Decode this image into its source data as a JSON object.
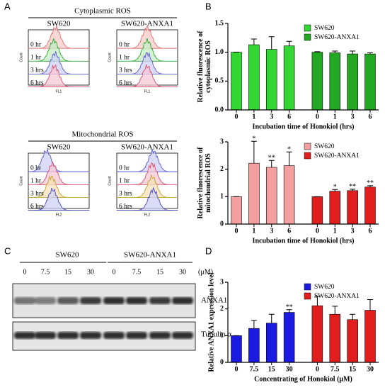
{
  "panel_labels": [
    "A",
    "B",
    "C",
    "D"
  ],
  "flow": {
    "cytoplasmic_title": "Cytoplasmic ROS",
    "mitochondrial_title": "Mitochondrial ROS",
    "cell_lines": [
      "SW620",
      "SW620-ANXA1"
    ],
    "times": [
      "0 hr",
      "1 hr",
      "3 hrs",
      "6 hrs"
    ],
    "y_label": "Count",
    "x_labels": [
      "FL1",
      "FL2"
    ]
  },
  "blot": {
    "cell_lines": [
      "SW620",
      "SW620-ANXA1"
    ],
    "concentrations": [
      "0",
      "7.5",
      "15",
      "30",
      "0",
      "7.5",
      "15",
      "30"
    ],
    "unit": "(μM)",
    "bands": [
      "ANXA1",
      "Tubulin α"
    ]
  },
  "chart_data": [
    {
      "type": "bar",
      "ylabel": [
        "Relative fluorescence of",
        "cytoplasmic ROS"
      ],
      "xlabel": "Incubation time of Honokiol (hrs)",
      "categories": [
        "0",
        "1",
        "3",
        "6",
        "0",
        "1",
        "3",
        "6"
      ],
      "series": [
        {
          "name": "SW620",
          "color": "#33d633",
          "values": [
            1.0,
            1.13,
            1.05,
            1.11,
            null,
            null,
            null,
            null
          ],
          "errors": [
            0.0,
            0.1,
            0.22,
            0.08,
            null,
            null,
            null,
            null
          ]
        },
        {
          "name": "SW620-ANXA1",
          "color": "#22a822",
          "values": [
            null,
            null,
            null,
            null,
            1.0,
            0.99,
            0.97,
            0.97
          ],
          "errors": [
            null,
            null,
            null,
            null,
            0.01,
            0.03,
            0.05,
            0.02
          ]
        }
      ],
      "ylim": [
        0,
        1.5
      ],
      "yticks": [
        {
          "value": 0,
          "label": "0.0"
        },
        {
          "value": 0.5,
          "label": "0.5"
        },
        {
          "value": 1,
          "label": "1.0"
        },
        {
          "value": 1.5,
          "label": "1.5"
        }
      ],
      "legend": "upper right",
      "annotations": []
    },
    {
      "type": "bar",
      "ylabel": [
        "Relative fluorescence of",
        "mitochondrial ROS"
      ],
      "xlabel": "Incubation time of Honokiol (hrs)",
      "categories": [
        "0",
        "1",
        "3",
        "6",
        "0",
        "1",
        "3",
        "6"
      ],
      "series": [
        {
          "name": "SW620",
          "color": "#f4a0a0",
          "values": [
            1.0,
            2.22,
            2.07,
            2.13,
            null,
            null,
            null,
            null
          ],
          "errors": [
            0.0,
            0.8,
            0.25,
            0.5,
            null,
            null,
            null,
            null
          ]
        },
        {
          "name": "SW620-ANXA1",
          "color": "#e01e1e",
          "values": [
            null,
            null,
            null,
            null,
            1.0,
            1.2,
            1.22,
            1.35
          ],
          "errors": [
            null,
            null,
            null,
            null,
            0.0,
            0.06,
            0.05,
            0.05
          ]
        }
      ],
      "ylim": [
        0,
        3
      ],
      "yticks": [
        0,
        1,
        2,
        3
      ],
      "legend": "upper right",
      "annotations": [
        {
          "text": "*",
          "series": 0,
          "category": 1
        },
        {
          "text": "**",
          "series": 0,
          "category": 2
        },
        {
          "text": "*",
          "series": 0,
          "category": 3
        },
        {
          "text": "*",
          "series": 1,
          "category": 5
        },
        {
          "text": "**",
          "series": 1,
          "category": 6
        },
        {
          "text": "**",
          "series": 1,
          "category": 7
        }
      ]
    },
    {
      "type": "bar",
      "ylabel": [
        "Relative ANXA1 expression level"
      ],
      "xlabel": "Concentrating of Honokiol (μM)",
      "categories": [
        "0",
        "7.5",
        "15",
        "30",
        "0",
        "7.5",
        "15",
        "30"
      ],
      "series": [
        {
          "name": "SW620",
          "color": "#1a1ae0",
          "values": [
            1.0,
            1.27,
            1.47,
            1.87,
            null,
            null,
            null,
            null
          ],
          "errors": [
            0.0,
            0.3,
            0.33,
            0.1,
            null,
            null,
            null,
            null
          ]
        },
        {
          "name": "SW620-ANXA1",
          "color": "#e01e1e",
          "values": [
            null,
            null,
            null,
            null,
            2.12,
            1.8,
            1.6,
            1.95
          ],
          "errors": [
            null,
            null,
            null,
            null,
            0.35,
            0.3,
            0.2,
            0.4
          ]
        }
      ],
      "ylim": [
        0,
        3
      ],
      "yticks": [
        0,
        1,
        2,
        3
      ],
      "legend": "upper right",
      "annotations": [
        {
          "text": "**",
          "series": 0,
          "category": 3
        }
      ]
    }
  ]
}
